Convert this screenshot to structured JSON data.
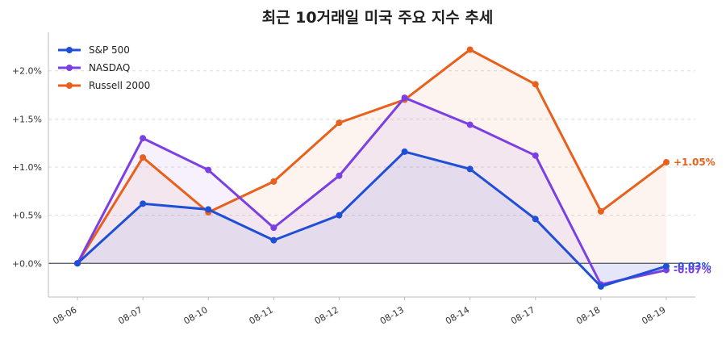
{
  "chart_data": {
    "type": "line",
    "title": "최근 10거래일 미국 주요 지수 추세",
    "xlabel": "",
    "ylabel": "",
    "categories": [
      "08-06",
      "08-07",
      "08-10",
      "08-11",
      "08-12",
      "08-13",
      "08-14",
      "08-17",
      "08-18",
      "08-19"
    ],
    "yticks": [
      "+2.0%",
      "+1.5%",
      "+1.0%",
      "+0.5%",
      "+0.0%"
    ],
    "ylim": [
      -0.35,
      2.35
    ],
    "ytick_values": [
      2.0,
      1.5,
      1.0,
      0.5,
      0.0
    ],
    "grid": true,
    "legend_position": "top-left",
    "series": [
      {
        "name": "S&P 500",
        "color": "#1f4fd6",
        "values": [
          0.0,
          0.62,
          0.56,
          0.24,
          0.5,
          1.16,
          0.98,
          0.46,
          -0.24,
          -0.03
        ],
        "end_label": "-0.03%"
      },
      {
        "name": "NASDAQ",
        "color": "#7b3fe4",
        "values": [
          0.0,
          1.3,
          0.97,
          0.37,
          0.91,
          1.72,
          1.44,
          1.12,
          -0.22,
          -0.07
        ],
        "end_label": "-0.07%"
      },
      {
        "name": "Russell 2000",
        "color": "#e8601c",
        "values": [
          0.0,
          1.1,
          0.53,
          0.85,
          1.46,
          1.7,
          2.22,
          1.86,
          0.54,
          1.05
        ],
        "end_label": "+1.05%"
      }
    ]
  }
}
